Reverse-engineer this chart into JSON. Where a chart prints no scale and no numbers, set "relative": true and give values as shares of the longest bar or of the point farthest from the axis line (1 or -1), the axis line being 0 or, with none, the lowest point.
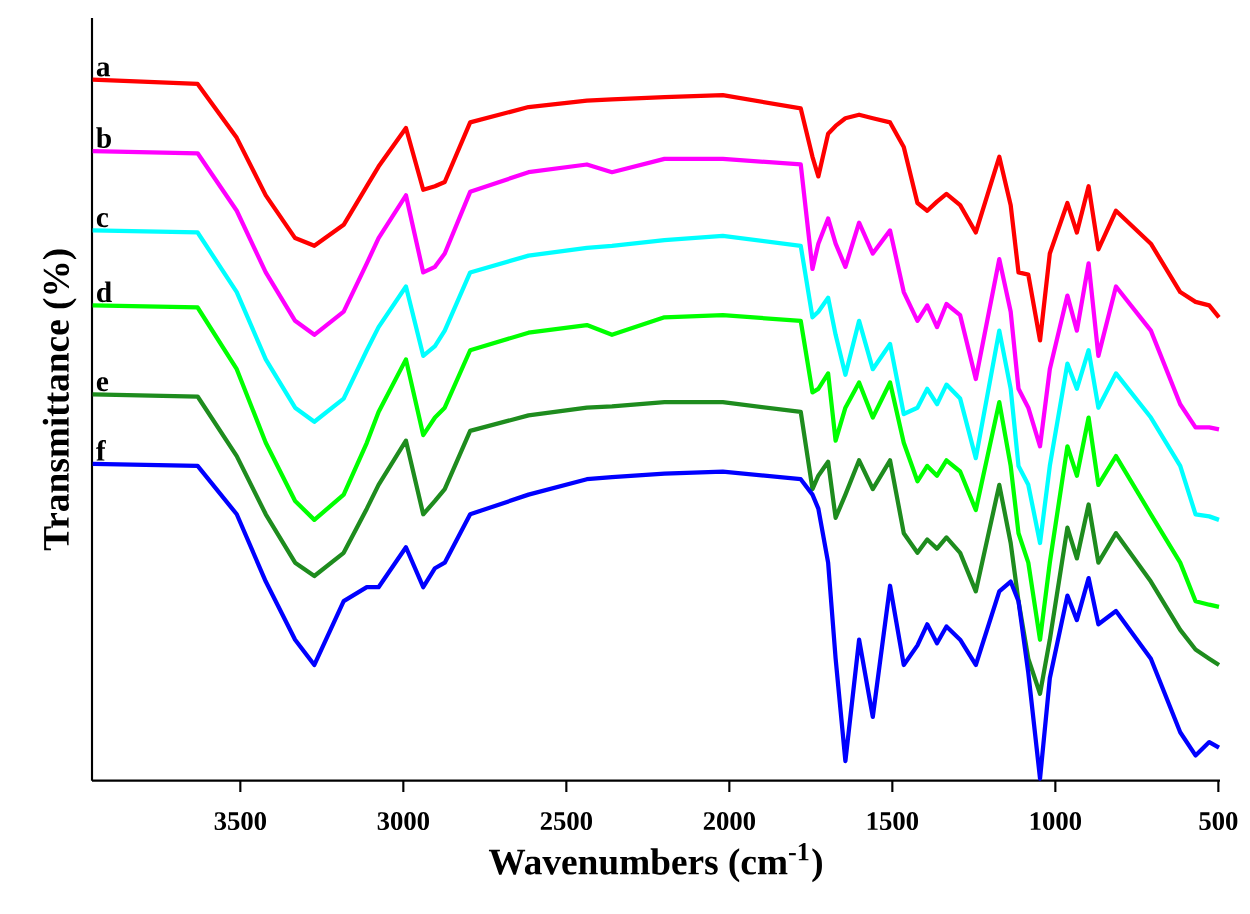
{
  "chart_data": {
    "type": "line",
    "xlabel": "Wavenumbers (cm$^{-1}$)",
    "ylabel": "Transmittance (%)",
    "relative": true,
    "legend": false,
    "xlim": [
      3955,
      495
    ],
    "xticks": [
      3500,
      3000,
      2500,
      2000,
      1500,
      1000,
      500
    ],
    "x": [
      3953,
      3631,
      3511,
      3422,
      3332,
      3273,
      3183,
      3112,
      3076,
      2992,
      2939,
      2903,
      2873,
      2795,
      2616,
      2437,
      2360,
      2199,
      2020,
      1781,
      1745,
      1727,
      1697,
      1674,
      1644,
      1602,
      1560,
      1507,
      1465,
      1423,
      1393,
      1363,
      1334,
      1292,
      1244,
      1172,
      1137,
      1113,
      1083,
      1047,
      1017,
      963,
      934,
      898,
      868,
      814,
      707,
      617,
      570,
      528,
      498
    ],
    "series": [
      {
        "name": "a",
        "color": "#ff0000",
        "values": [
          1.0,
          0.994,
          0.917,
          0.835,
          0.774,
          0.763,
          0.793,
          0.848,
          0.876,
          0.931,
          0.843,
          0.848,
          0.854,
          0.939,
          0.961,
          0.97,
          0.972,
          0.975,
          0.978,
          0.959,
          0.89,
          0.862,
          0.923,
          0.934,
          0.945,
          0.95,
          0.945,
          0.939,
          0.904,
          0.824,
          0.813,
          0.826,
          0.837,
          0.821,
          0.782,
          0.89,
          0.821,
          0.725,
          0.722,
          0.628,
          0.752,
          0.824,
          0.782,
          0.848,
          0.758,
          0.813,
          0.766,
          0.697,
          0.683,
          0.678,
          0.661
        ]
      },
      {
        "name": "b",
        "color": "#ff00ff",
        "values": [
          0.898,
          0.895,
          0.813,
          0.725,
          0.656,
          0.636,
          0.669,
          0.738,
          0.774,
          0.835,
          0.725,
          0.733,
          0.752,
          0.84,
          0.868,
          0.879,
          0.868,
          0.887,
          0.887,
          0.879,
          0.73,
          0.766,
          0.802,
          0.766,
          0.733,
          0.796,
          0.752,
          0.785,
          0.697,
          0.656,
          0.678,
          0.647,
          0.68,
          0.664,
          0.573,
          0.744,
          0.669,
          0.559,
          0.532,
          0.477,
          0.587,
          0.692,
          0.642,
          0.738,
          0.606,
          0.705,
          0.642,
          0.537,
          0.504,
          0.504,
          0.501
        ]
      },
      {
        "name": "c",
        "color": "#00ffff",
        "values": [
          0.785,
          0.782,
          0.697,
          0.601,
          0.532,
          0.512,
          0.545,
          0.614,
          0.647,
          0.705,
          0.606,
          0.62,
          0.642,
          0.725,
          0.749,
          0.76,
          0.763,
          0.771,
          0.777,
          0.763,
          0.661,
          0.669,
          0.689,
          0.636,
          0.579,
          0.656,
          0.587,
          0.623,
          0.523,
          0.532,
          0.559,
          0.537,
          0.565,
          0.545,
          0.46,
          0.642,
          0.559,
          0.449,
          0.422,
          0.339,
          0.449,
          0.595,
          0.559,
          0.614,
          0.532,
          0.581,
          0.518,
          0.449,
          0.38,
          0.377,
          0.372
        ]
      },
      {
        "name": "d",
        "color": "#00ff00",
        "values": [
          0.678,
          0.675,
          0.587,
          0.482,
          0.399,
          0.372,
          0.408,
          0.482,
          0.526,
          0.601,
          0.493,
          0.518,
          0.532,
          0.614,
          0.639,
          0.65,
          0.636,
          0.661,
          0.664,
          0.656,
          0.554,
          0.559,
          0.581,
          0.485,
          0.532,
          0.568,
          0.518,
          0.568,
          0.482,
          0.427,
          0.449,
          0.435,
          0.457,
          0.441,
          0.386,
          0.54,
          0.449,
          0.353,
          0.311,
          0.201,
          0.311,
          0.477,
          0.435,
          0.518,
          0.422,
          0.463,
          0.38,
          0.311,
          0.256,
          0.251,
          0.248
        ]
      },
      {
        "name": "e",
        "color": "#1e8c1e",
        "values": [
          0.551,
          0.548,
          0.463,
          0.38,
          0.311,
          0.292,
          0.325,
          0.388,
          0.422,
          0.485,
          0.38,
          0.399,
          0.416,
          0.499,
          0.521,
          0.532,
          0.534,
          0.54,
          0.54,
          0.526,
          0.416,
          0.435,
          0.455,
          0.375,
          0.408,
          0.457,
          0.416,
          0.457,
          0.353,
          0.325,
          0.344,
          0.331,
          0.347,
          0.325,
          0.27,
          0.422,
          0.339,
          0.256,
          0.174,
          0.124,
          0.201,
          0.361,
          0.317,
          0.394,
          0.311,
          0.353,
          0.284,
          0.215,
          0.187,
          0.174,
          0.165
        ]
      },
      {
        "name": "f",
        "color": "#0000ff",
        "values": [
          0.452,
          0.449,
          0.38,
          0.284,
          0.201,
          0.165,
          0.256,
          0.276,
          0.276,
          0.333,
          0.276,
          0.303,
          0.311,
          0.38,
          0.408,
          0.43,
          0.433,
          0.438,
          0.441,
          0.43,
          0.408,
          0.388,
          0.311,
          0.174,
          0.028,
          0.201,
          0.091,
          0.278,
          0.165,
          0.193,
          0.223,
          0.196,
          0.22,
          0.201,
          0.165,
          0.27,
          0.284,
          0.256,
          0.154,
          0.003,
          0.146,
          0.264,
          0.229,
          0.289,
          0.223,
          0.242,
          0.174,
          0.069,
          0.036,
          0.055,
          0.047
        ]
      }
    ]
  }
}
